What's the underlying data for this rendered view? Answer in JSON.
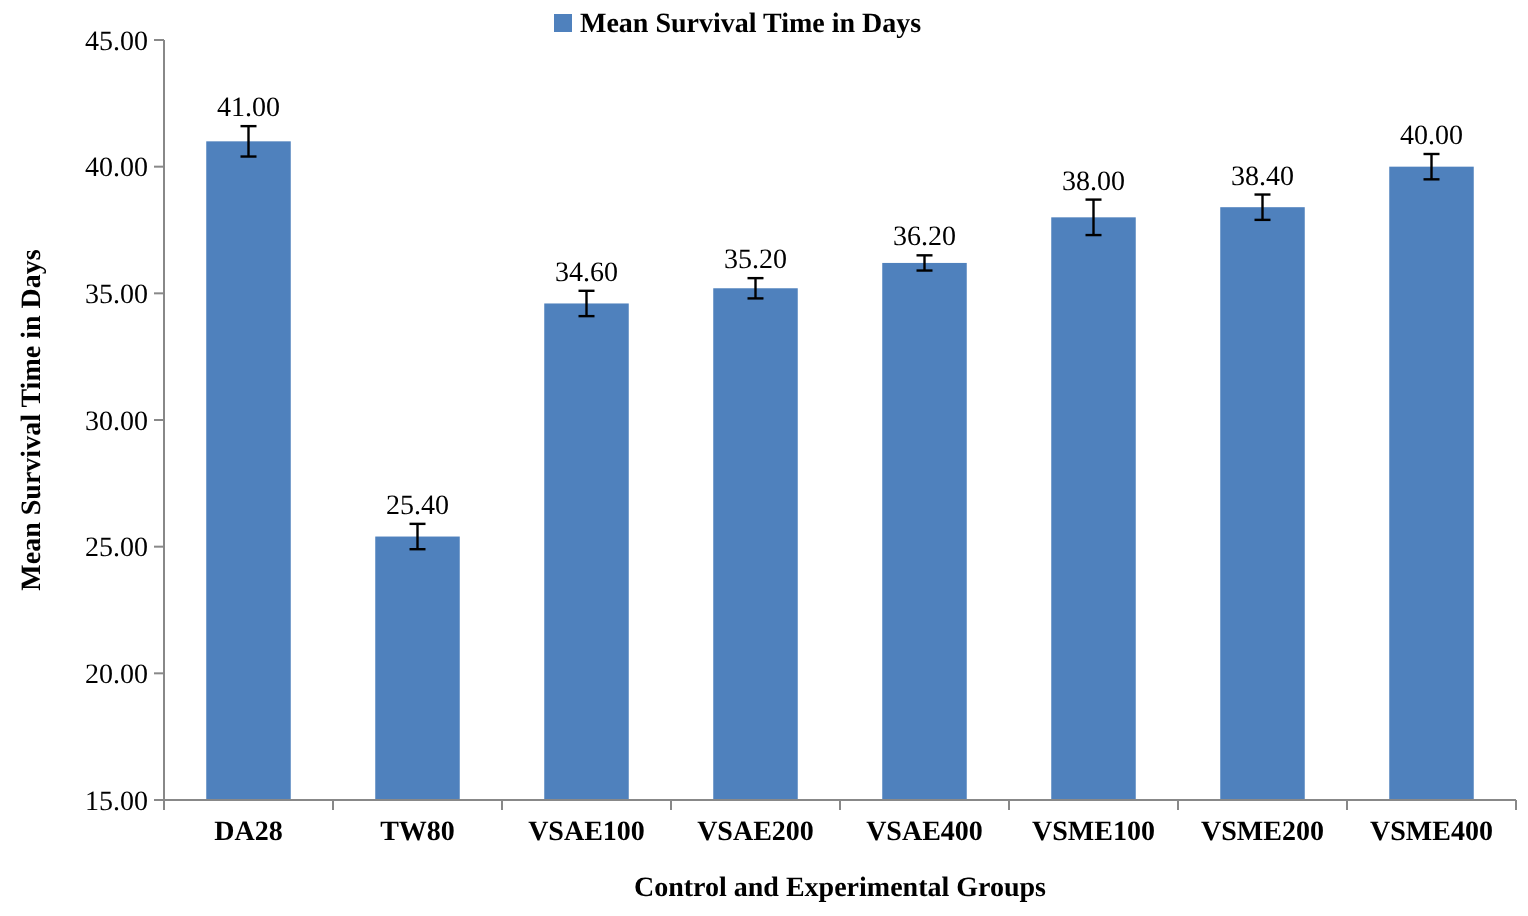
{
  "chart_data": {
    "type": "bar",
    "xlabel": "Control and Experimental Groups",
    "ylabel": "Mean Survival Time in Days",
    "categories": [
      "DA28",
      "TW80",
      "VSAE100",
      "VSAE200",
      "VSAE400",
      "VSME100",
      "VSME200",
      "VSME400"
    ],
    "series": [
      {
        "name": "Mean Survival Time in Days",
        "color": "#4f81bd",
        "values": [
          41.0,
          25.4,
          34.6,
          35.2,
          36.2,
          38.0,
          38.4,
          40.0
        ],
        "errors": [
          0.6,
          0.5,
          0.5,
          0.4,
          0.3,
          0.7,
          0.5,
          0.5
        ]
      }
    ],
    "value_labels": [
      "41.00",
      "25.40",
      "34.60",
      "35.20",
      "36.20",
      "38.00",
      "38.40",
      "40.00"
    ],
    "ylim": [
      15,
      45
    ],
    "yticks": [
      {
        "value": 15,
        "label": "15.00"
      },
      {
        "value": 20,
        "label": "20.00"
      },
      {
        "value": 25,
        "label": "25.00"
      },
      {
        "value": 30,
        "label": "30.00"
      },
      {
        "value": 35,
        "label": "35.00"
      },
      {
        "value": 40,
        "label": "40.00"
      },
      {
        "value": 45,
        "label": "45.00"
      }
    ],
    "legend": "top",
    "grid": false
  }
}
